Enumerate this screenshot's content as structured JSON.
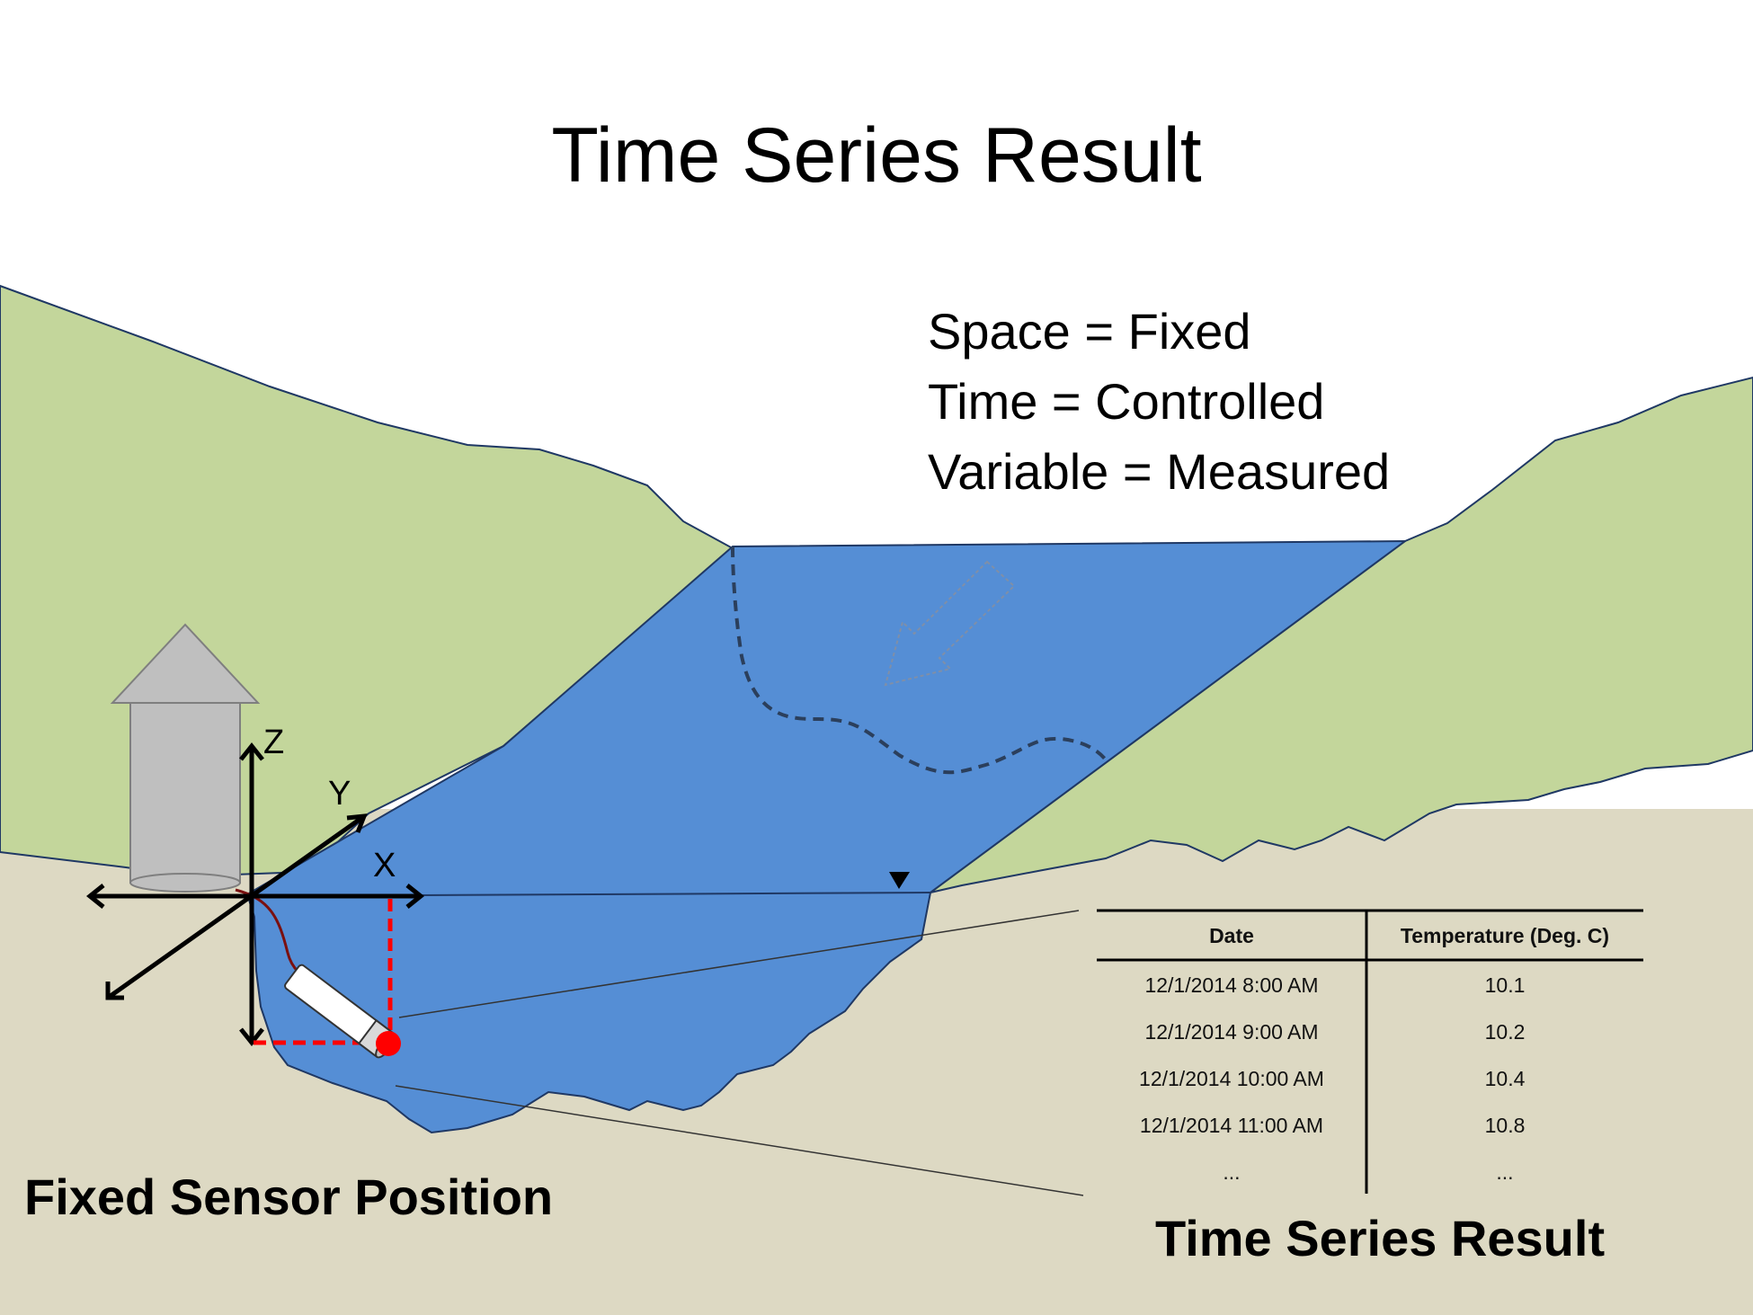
{
  "title": "Time Series Result",
  "conditions": [
    "Space = Fixed",
    "Time = Controlled",
    "Variable = Measured"
  ],
  "axes": {
    "x": "X",
    "y": "Y",
    "z": "Z"
  },
  "table": {
    "columns": [
      "Date",
      "Temperature (Deg. C)"
    ],
    "rows": [
      [
        "12/1/2014 8:00 AM",
        "10.1"
      ],
      [
        "12/1/2014 9:00 AM",
        "10.2"
      ],
      [
        "12/1/2014 10:00 AM",
        "10.4"
      ],
      [
        "12/1/2014 11:00 AM",
        "10.8"
      ],
      [
        "...",
        "..."
      ]
    ]
  },
  "captions": {
    "sensor": "Fixed Sensor Position",
    "result": "Time Series Result"
  },
  "colors": {
    "hill": "#c3d69b",
    "ground": "#ddd9c3",
    "water": "#558ed5",
    "outline": "#1f3864",
    "sensor_dot": "#ff0000",
    "offset_lines": "#ff0000",
    "cable": "#7a1010",
    "housing": "#bfbfbf"
  },
  "icons": [
    "house-icon",
    "sensor-icon",
    "water-surface-marker-icon",
    "flow-arrow-icon"
  ]
}
